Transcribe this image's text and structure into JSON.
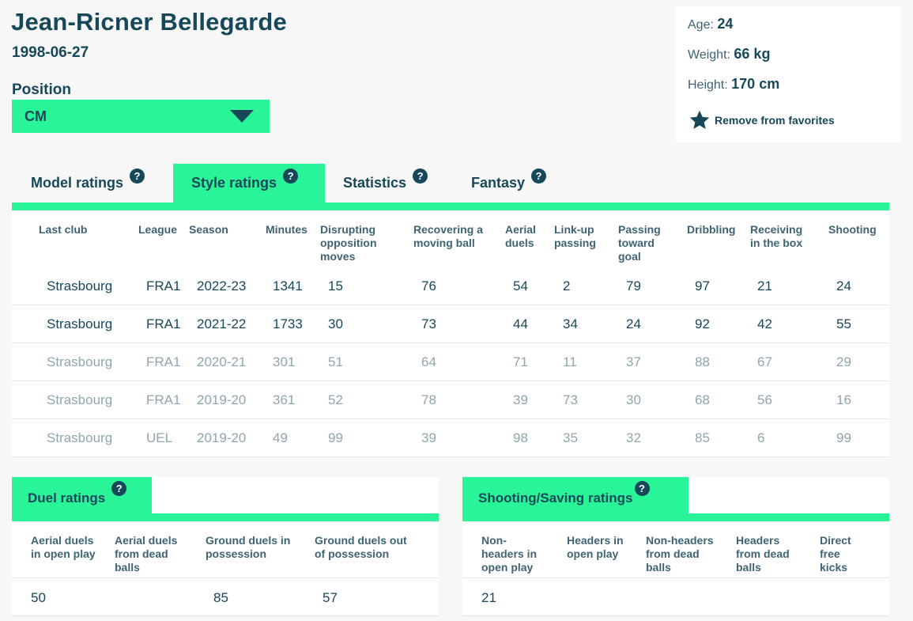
{
  "player": {
    "name": "Jean-Ricner Bellegarde",
    "dob": "1998-06-27",
    "position_label": "Position",
    "position_value": "CM"
  },
  "info": {
    "age_label": "Age:",
    "age_value": "24",
    "weight_label": "Weight:",
    "weight_value": "66 kg",
    "height_label": "Height:",
    "height_value": "170 cm",
    "favorite_label": "Remove from favorites"
  },
  "tabs": [
    {
      "label": "Model ratings",
      "help": "?"
    },
    {
      "label": "Style ratings",
      "help": "?"
    },
    {
      "label": "Statistics",
      "help": "?"
    },
    {
      "label": "Fantasy",
      "help": "?"
    }
  ],
  "active_tab": "Style ratings",
  "colors": {
    "accent": "#29f598",
    "primary": "#17485a",
    "dim": "#8fa6ae"
  },
  "main_table": {
    "headers": [
      "Last club",
      "League",
      "Season",
      "Minutes",
      "Disrupting\nopposition\nmoves",
      "Recovering a\nmoving ball",
      "Aerial\nduels",
      "Link-up\npassing",
      "Passing\ntoward\ngoal",
      "Dribbling",
      "Receiving\nin the box",
      "Shooting"
    ],
    "rows": [
      [
        "Strasbourg",
        "FRA1",
        "2022-23",
        "1341",
        "15",
        "76",
        "54",
        "2",
        "79",
        "97",
        "21",
        "24"
      ],
      [
        "Strasbourg",
        "FRA1",
        "2021-22",
        "1733",
        "30",
        "73",
        "44",
        "34",
        "24",
        "92",
        "42",
        "55"
      ],
      [
        "Strasbourg",
        "FRA1",
        "2020-21",
        "301",
        "51",
        "64",
        "71",
        "11",
        "37",
        "88",
        "67",
        "29"
      ],
      [
        "Strasbourg",
        "FRA1",
        "2019-20",
        "361",
        "52",
        "78",
        "39",
        "73",
        "30",
        "68",
        "56",
        "16"
      ],
      [
        "Strasbourg",
        "UEL",
        "2019-20",
        "49",
        "99",
        "39",
        "98",
        "35",
        "32",
        "85",
        "6",
        "99"
      ]
    ]
  },
  "duel_ratings": {
    "title": "Duel ratings",
    "help": "?",
    "headers": [
      "Aerial duels\nin open play",
      "Aerial duels\nfrom dead\nballs",
      "Ground duels in\npossession",
      "Ground duels out\nof possession"
    ],
    "values": [
      "50",
      "",
      "85",
      "57"
    ]
  },
  "shooting_ratings": {
    "title": "Shooting/Saving ratings",
    "help": "?",
    "headers": [
      "Non-\nheaders in\nopen play",
      "Headers in\nopen play",
      "Non-headers\nfrom dead\nballs",
      "Headers\nfrom dead\nballs",
      "Direct\nfree\nkicks"
    ],
    "values": [
      "21",
      "",
      "",
      "",
      ""
    ]
  }
}
